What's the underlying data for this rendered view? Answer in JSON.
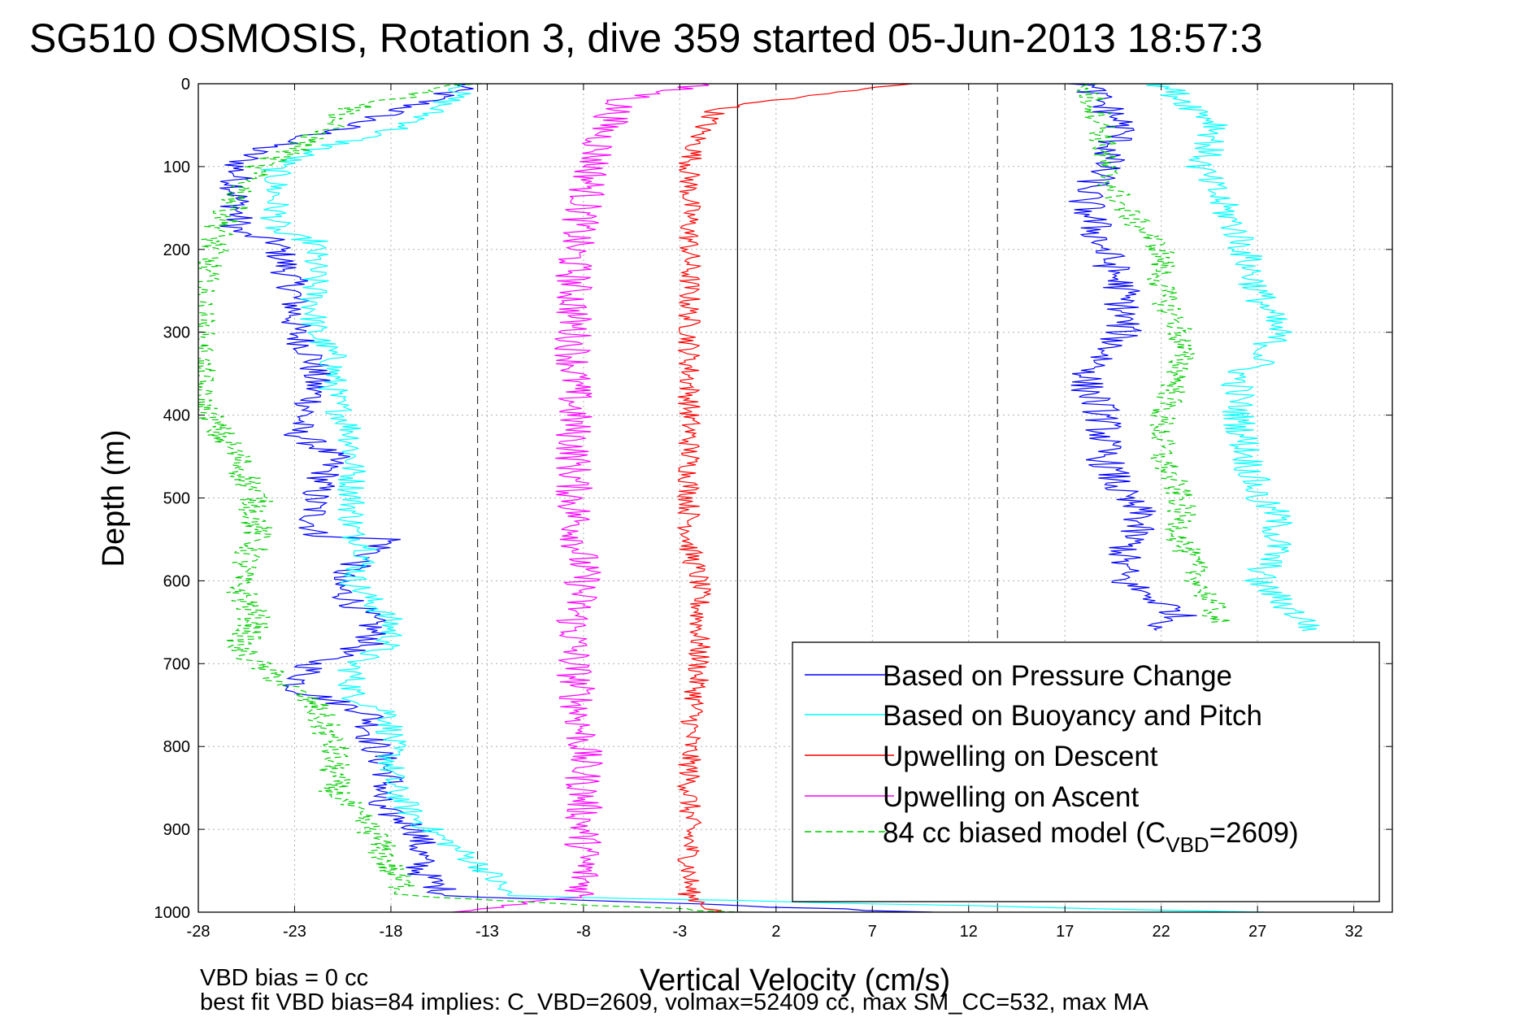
{
  "chart_data": {
    "type": "line",
    "title": "SG510 OSMOSIS, Rotation 3, dive 359 started 05-Jun-2013 18:57:3",
    "xlabel": "Vertical Velocity (cm/s)",
    "ylabel": "Depth (m)",
    "xlim": [
      -28,
      34
    ],
    "ylim": [
      0,
      1000
    ],
    "y_reversed": true,
    "grid": true,
    "legend_position": "bottom-right",
    "xticks": [
      -28,
      -23,
      -18,
      -13,
      -8,
      -3,
      2,
      7,
      12,
      17,
      22,
      27,
      32
    ],
    "yticks": [
      0,
      100,
      200,
      300,
      400,
      500,
      600,
      700,
      800,
      900,
      1000
    ],
    "reference_lines": {
      "dashed_x": [
        -13.5,
        13.5
      ],
      "solid_x": [
        0
      ]
    },
    "notes": [
      "VBD bias = 0 cc",
      "best fit VBD bias=84 implies: C_VBD=2609, volmax=52409 cc, max SM_CC=532, max MA"
    ],
    "legend": [
      {
        "label": "Based on Pressure Change",
        "color": "#0000ff",
        "dash": "solid"
      },
      {
        "label": "Based on Buoyancy and Pitch",
        "color": "#00ffff",
        "dash": "solid"
      },
      {
        "label": "Upwelling on Descent",
        "color": "#ff0000",
        "dash": "solid"
      },
      {
        "label": "Upwelling on Ascent",
        "color": "#ff00ff",
        "dash": "solid"
      },
      {
        "label": "84 cc biased model (C",
        "sub": "VBD",
        "suffix": "=2609)",
        "color": "#00cc00",
        "dash": "dashed"
      }
    ],
    "series": [
      {
        "name": "Based on Pressure Change",
        "color": "#0000ff",
        "dash": "",
        "amp": 0.9,
        "depth": [
          0,
          20,
          50,
          80,
          100,
          180,
          190,
          250,
          300,
          330,
          360,
          380,
          420,
          450,
          500,
          545,
          550,
          600,
          650,
          675,
          700,
          730,
          760,
          790,
          840,
          870,
          900,
          950,
          980,
          1000
        ],
        "x": [
          -14,
          -16,
          -20,
          -25,
          -26,
          -26,
          -24,
          -23,
          -23,
          -22,
          -22,
          -22,
          -23,
          -21,
          -22,
          -22,
          -18,
          -21,
          -19,
          -19,
          -22,
          -23,
          -19,
          -19,
          -18,
          -19,
          -16.5,
          -16.5,
          -15,
          10
        ]
      },
      {
        "name": "Based on Buoyancy and Pitch",
        "color": "#00ffff",
        "dash": "",
        "amp": 0.8,
        "depth": [
          0,
          20,
          50,
          80,
          100,
          180,
          190,
          250,
          300,
          330,
          360,
          380,
          420,
          450,
          500,
          545,
          560,
          600,
          650,
          675,
          700,
          740,
          760,
          790,
          845,
          880,
          900,
          950,
          980,
          1000
        ],
        "x": [
          -14,
          -15,
          -17,
          -22,
          -24,
          -24,
          -22,
          -22,
          -22,
          -21,
          -21,
          -21,
          -20,
          -20,
          -20,
          -20,
          -19,
          -20,
          -18,
          -18,
          -20,
          -20,
          -18,
          -18,
          -18,
          -17,
          -16,
          -13,
          -12,
          27
        ]
      },
      {
        "name": "Upwelling on Descent",
        "color": "#ff0000",
        "dash": "",
        "amp": 0.6,
        "depth": [
          0,
          10,
          30,
          60,
          100,
          200,
          300,
          360,
          400,
          500,
          560,
          600,
          700,
          800,
          850,
          900,
          980,
          1000
        ],
        "x": [
          9,
          5,
          -1,
          -2,
          -2.5,
          -2.5,
          -2.5,
          -2.5,
          -2.5,
          -2.5,
          -2.5,
          -2,
          -2,
          -2.5,
          -2.5,
          -2.5,
          -2.5,
          -1
        ]
      },
      {
        "name": "Upwelling on Ascent",
        "color": "#ff00ff",
        "dash": "",
        "amp": 1.0,
        "depth": [
          0,
          20,
          60,
          100,
          200,
          300,
          400,
          500,
          600,
          650,
          700,
          800,
          900,
          980,
          1000
        ],
        "x": [
          -2,
          -6,
          -7,
          -7.5,
          -8.5,
          -8.5,
          -8.5,
          -8.5,
          -8,
          -8.5,
          -8.5,
          -8,
          -8,
          -8,
          -14
        ]
      },
      {
        "name": "84 cc biased model (CVBD=2609)",
        "color": "#00cc00",
        "dash": "8,5",
        "amp": 0.9,
        "depth": [
          0,
          30,
          80,
          100,
          180,
          250,
          300,
          350,
          380,
          420,
          450,
          500,
          550,
          600,
          650,
          680,
          700,
          750,
          800,
          850,
          880,
          900,
          950,
          980,
          1000
        ],
        "x": [
          -14,
          -20,
          -23,
          -25,
          -27,
          -28,
          -28,
          -28,
          -28,
          -27,
          -26,
          -25,
          -25,
          -26,
          -25,
          -26,
          -25,
          -22,
          -21,
          -21,
          -20,
          -19,
          -18,
          -17,
          0
        ]
      },
      {
        "name": "Based on Pressure Change",
        "color": "#0000ff",
        "dash": "",
        "amp": 1.0,
        "depth": [
          0,
          50,
          100,
          140,
          200,
          250,
          300,
          360,
          400,
          450,
          500,
          520,
          570,
          600,
          640,
          660
        ],
        "x": [
          18,
          20,
          19,
          18,
          19,
          20,
          20,
          18,
          19,
          19,
          20,
          21,
          20,
          20,
          23,
          22
        ]
      },
      {
        "name": "Based on Buoyancy and Pitch",
        "color": "#00ffff",
        "dash": "",
        "amp": 0.9,
        "depth": [
          0,
          50,
          100,
          180,
          250,
          300,
          340,
          350,
          400,
          500,
          520,
          560,
          600,
          640,
          660
        ],
        "x": [
          22,
          25,
          24,
          26,
          27,
          28,
          27,
          26,
          26,
          27,
          28,
          28,
          27,
          29,
          30
        ]
      },
      {
        "name": "84 cc biased model (CVBD=2609)",
        "color": "#00cc00",
        "dash": "8,5",
        "amp": 0.8,
        "depth": [
          0,
          50,
          100,
          150,
          200,
          250,
          300,
          350,
          400,
          450,
          500,
          550,
          600,
          650
        ],
        "x": [
          18,
          19,
          19,
          20,
          22,
          22,
          23,
          23,
          22,
          22,
          23,
          23,
          24,
          25
        ]
      }
    ]
  }
}
